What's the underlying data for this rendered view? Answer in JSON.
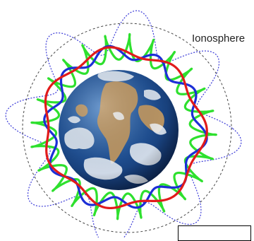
{
  "diagram": {
    "label": "Ionosphere",
    "colors": {
      "background": "#ffffff",
      "ionosphere_boundary": "#444444",
      "red_wave": "#e11b1b",
      "blue_wave": "#1c2fd6",
      "green_wave": "#2ee02e",
      "blue_dotted_wave": "#3b3bd8",
      "earth_ocean": "#1f4f92",
      "earth_cloud": "#eef3f8",
      "earth_land": "#b89464"
    },
    "icons": [
      "earth-globe",
      "standing-wave-curves",
      "ionosphere-boundary-circle"
    ],
    "caption_box_text": ""
  }
}
